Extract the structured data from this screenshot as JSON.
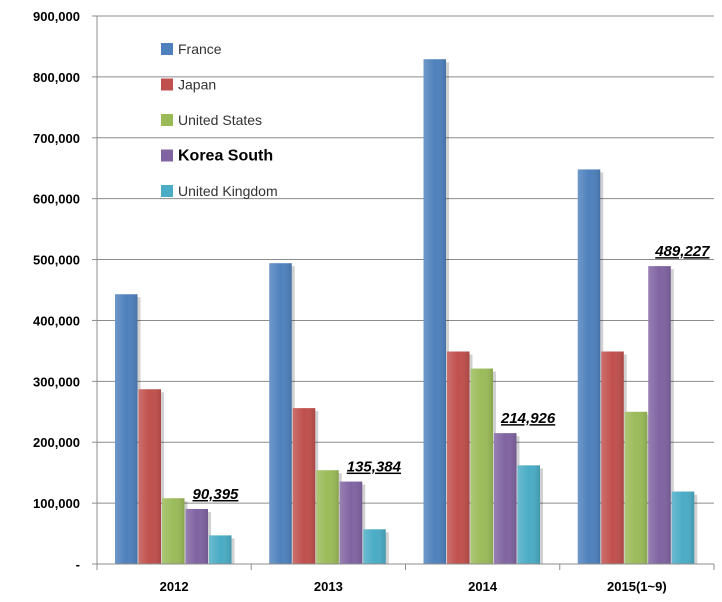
{
  "chart_data": {
    "type": "bar",
    "categories": [
      "2012",
      "2013",
      "2014",
      "2015(1~9)"
    ],
    "series": [
      {
        "name": "France",
        "color": "#4F81BD",
        "values": [
          443000,
          494000,
          829000,
          648000
        ]
      },
      {
        "name": "Japan",
        "color": "#C0504D",
        "values": [
          287000,
          256000,
          349000,
          349000
        ]
      },
      {
        "name": "United States",
        "color": "#9BBB59",
        "values": [
          108000,
          154000,
          321000,
          250000
        ]
      },
      {
        "name": "Korea South",
        "color": "#8064A2",
        "values": [
          90395,
          135384,
          214926,
          489227
        ],
        "highlight": true
      },
      {
        "name": "United Kingdom",
        "color": "#4BACC6",
        "values": [
          47000,
          57000,
          162000,
          119000
        ]
      }
    ],
    "callouts": [
      "90,395",
      "135,384",
      "214,926",
      "489,227"
    ],
    "yticks": [
      "-",
      "100,000",
      "200,000",
      "300,000",
      "400,000",
      "500,000",
      "600,000",
      "700,000",
      "800,000",
      "900,000"
    ],
    "ylim": [
      0,
      900000
    ],
    "grid": true,
    "legend_position": "top-left inside plot",
    "title": "",
    "xlabel": "",
    "ylabel": ""
  }
}
